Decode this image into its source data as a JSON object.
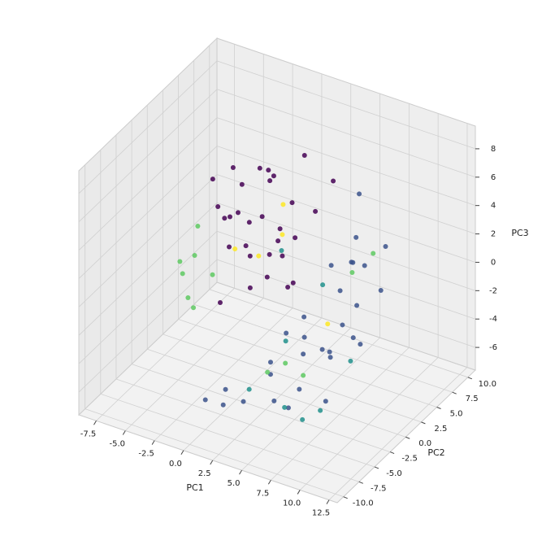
{
  "chart_data": {
    "type": "scatter3d",
    "xlabel": "PC1",
    "ylabel": "PC2",
    "zlabel": "PC3",
    "xlim": [
      -9,
      13.2
    ],
    "ylim": [
      -11,
      11.2
    ],
    "zlim": [
      -7.6,
      9.6
    ],
    "xticks": [
      -7.5,
      {
        "value": -5,
        "label": "-5.0"
      },
      -2.5,
      {
        "value": 0,
        "label": "0.0"
      },
      2.5,
      {
        "value": 5,
        "label": "5.0"
      },
      7.5,
      {
        "value": 10,
        "label": "10.0"
      },
      12.5
    ],
    "yticks": [
      {
        "value": -10,
        "label": "-10.0"
      },
      -7.5,
      {
        "value": -5,
        "label": "-5.0"
      },
      -2.5,
      {
        "value": 0,
        "label": "0.0"
      },
      2.5,
      {
        "value": 5,
        "label": "5.0"
      },
      7.5,
      {
        "value": 10,
        "label": "10.0"
      }
    ],
    "zticks": [
      -6,
      -4,
      -2,
      0,
      2,
      4,
      6,
      8
    ],
    "grid": true,
    "series": [
      {
        "color": "#440154",
        "x": [
          -4,
          -3.5,
          -3,
          -2.5,
          -2,
          -1.5,
          -1,
          -0.5,
          0,
          0.5,
          1,
          1.5,
          2,
          2.5,
          3,
          -3.8,
          -2.8,
          -1.8,
          -0.8,
          0.2,
          1.2,
          2.2,
          -4.5,
          -3.2,
          -1.2,
          0.8,
          2.8,
          -2.2,
          1.8,
          3.5
        ],
        "y": [
          2,
          3,
          4,
          1,
          5,
          2.5,
          3.5,
          0.5,
          4.5,
          1.5,
          3,
          0,
          2,
          5.5,
          1,
          0.8,
          2.2,
          6,
          1.2,
          3.8,
          4.2,
          2.8,
          4,
          5,
          0,
          2,
          3.2,
          -1,
          -0.5,
          6.5
        ],
        "z": [
          3,
          2,
          4,
          1,
          5,
          0,
          2.5,
          3.5,
          1.5,
          -0.5,
          0.5,
          2,
          -1,
          3,
          0,
          5.5,
          6,
          4.5,
          -1.5,
          1,
          3.8,
          2.2,
          1.2,
          -0.8,
          4.2,
          6.5,
          8,
          -2,
          7.5,
          5
        ]
      },
      {
        "color": "#3b528b",
        "x": [
          4,
          4.5,
          5,
          5.5,
          6,
          6.5,
          7,
          7.5,
          8,
          8.5,
          9,
          9.5,
          5.2,
          6.2,
          7.2,
          8.2,
          4.8,
          5.8,
          6.8,
          7.8,
          3,
          2,
          1,
          0,
          10,
          3.5,
          8.8,
          6,
          4,
          9.2
        ],
        "y": [
          -2,
          0,
          -1,
          1,
          -3,
          2,
          -0.5,
          0.5,
          -2.5,
          1.5,
          0,
          -1.5,
          3,
          -4,
          2.5,
          -3.5,
          -6,
          -5,
          4,
          3.5,
          -7,
          -8,
          -6.5,
          -7.5,
          2,
          -3,
          5,
          6,
          -4.5,
          -1
        ],
        "z": [
          -2,
          -3,
          -1,
          -4,
          -2.5,
          0,
          -3.5,
          -1.5,
          -2,
          -3,
          0.5,
          -1,
          1,
          -4.5,
          2,
          -5,
          -3,
          -5.5,
          3,
          1.5,
          -5,
          -4,
          -6,
          -5.5,
          1,
          -6.5,
          2.5,
          5,
          -3,
          4
        ]
      },
      {
        "color": "#21918c",
        "x": [
          6,
          7,
          3.5,
          8,
          5,
          2,
          9,
          4.5
        ],
        "y": [
          -6,
          -5,
          -7,
          -4,
          2,
          1,
          -1,
          -3
        ],
        "z": [
          -5,
          -6,
          -4,
          -5.5,
          0,
          2,
          -3,
          -2
        ]
      },
      {
        "color": "#5ec962",
        "x": [
          -6.5,
          -6,
          -5.5,
          -5,
          -7,
          -4.5,
          5,
          6,
          7,
          -6.8,
          4,
          8
        ],
        "y": [
          1,
          2,
          0,
          3,
          1.5,
          -1,
          -4,
          -3,
          3,
          4,
          -5,
          4.5
        ],
        "z": [
          -2,
          -1,
          -3,
          -2.5,
          -1.5,
          -3,
          -3,
          -4,
          1,
          0,
          -3.5,
          2
        ]
      },
      {
        "color": "#fde725",
        "x": [
          -2,
          -0.5,
          1,
          6.5,
          0
        ],
        "y": [
          1,
          2,
          3,
          0,
          5
        ],
        "z": [
          1,
          0.5,
          2,
          -1.5,
          3
        ]
      }
    ]
  }
}
